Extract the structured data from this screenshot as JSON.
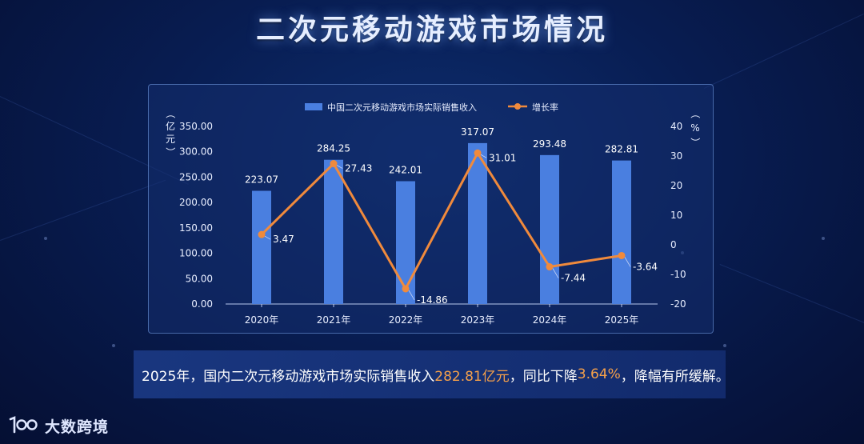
{
  "page_title": "二次元移动游戏市场情况",
  "chart_data": {
    "type": "bar",
    "categories": [
      "2020年",
      "2021年",
      "2022年",
      "2023年",
      "2024年",
      "2025年"
    ],
    "series": [
      {
        "name": "中国二次元移动游戏市场实际销售收入",
        "type": "bar",
        "axis": "left",
        "values": [
          223.07,
          284.25,
          242.01,
          317.07,
          293.48,
          282.81
        ],
        "labels": [
          "223.07",
          "284.25",
          "242.01",
          "317.07",
          "293.48",
          "282.81"
        ],
        "color": "#4a7fe0"
      },
      {
        "name": "增长率",
        "type": "line",
        "axis": "right",
        "values": [
          3.47,
          27.43,
          -14.86,
          31.01,
          -7.44,
          -3.64
        ],
        "labels": [
          "3.47",
          "27.43",
          "-14.86",
          "31.01",
          "-7.44",
          "-3.64"
        ],
        "color": "#f08a3c"
      }
    ],
    "y_left": {
      "label": "（亿元）",
      "range": [
        0,
        350
      ],
      "ticks": [
        "0.00",
        "50.00",
        "100.00",
        "150.00",
        "200.00",
        "250.00",
        "300.00",
        "350.00"
      ]
    },
    "y_right": {
      "label": "（%）",
      "range": [
        -20,
        40
      ],
      "ticks": [
        "-20",
        "-10",
        "0",
        "10",
        "20",
        "30",
        "40"
      ]
    },
    "legend_position": "top",
    "grid": false
  },
  "summary": {
    "part1": "2025年，国内二次元移动游戏市场实际销售收入",
    "value1": "282.81亿元",
    "part2": "，同比下降",
    "value2": "3.64%",
    "part3": "，降幅有所缓解。"
  },
  "logo": {
    "mark": "100",
    "name": "大数跨境"
  },
  "colors": {
    "highlight": "#f5a04a",
    "bar": "#4a7fe0",
    "line": "#f08a3c"
  }
}
